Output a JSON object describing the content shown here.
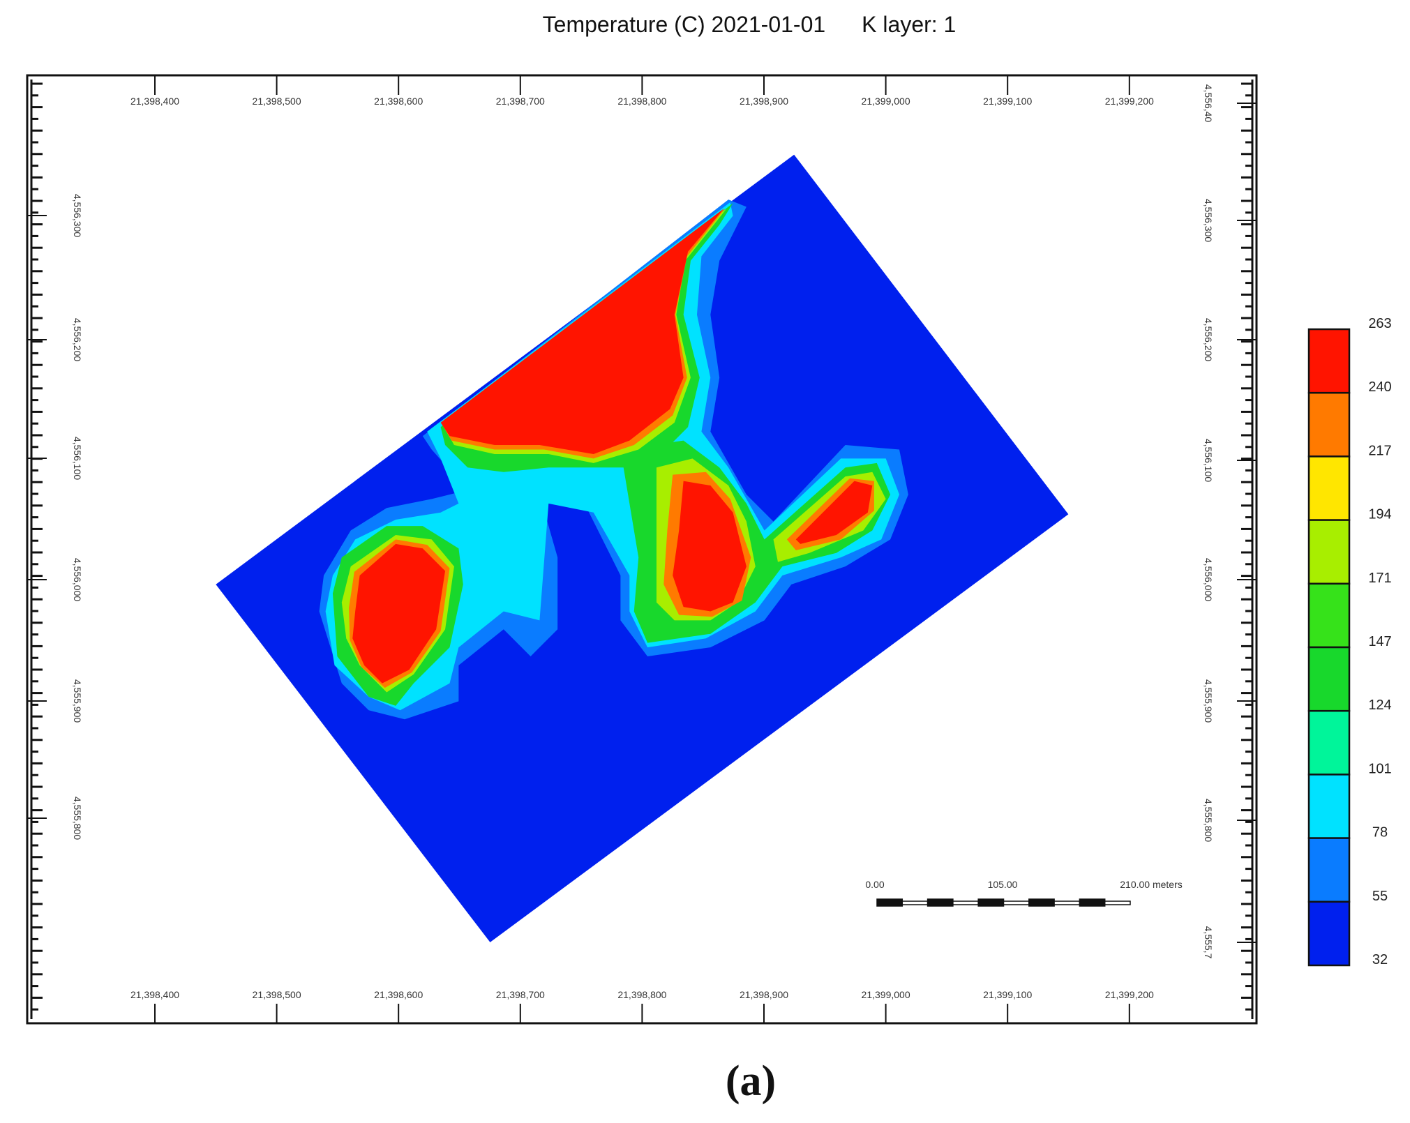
{
  "title": "Temperature (C) 2021-01-01",
  "layer_label": "K layer: 1",
  "x_ticks": [
    "21,398,400",
    "21,398,500",
    "21,398,600",
    "21,398,700",
    "21,398,800",
    "21,398,900",
    "21,399,000",
    "21,399,100",
    "21,399,200"
  ],
  "left_y_ticks": [
    "4,556,300",
    "4,556,200",
    "4,556,100",
    "4,556,000",
    "4,555,900",
    "4,555,800"
  ],
  "right_y_ticks": [
    "4,556,40",
    "4,556,300",
    "4,556,200",
    "4,556,100",
    "4,556,000",
    "4,555,900",
    "4,555,800",
    "4,555,7"
  ],
  "colorbar": {
    "levels": [
      263,
      240,
      217,
      194,
      171,
      147,
      124,
      101,
      78,
      55,
      32
    ],
    "colors": [
      "#ff1400",
      "#ff7a00",
      "#ffe600",
      "#a8ee00",
      "#36e21a",
      "#18d82c",
      "#00f59a",
      "#00e2ff",
      "#0a7cff",
      "#0020ee"
    ]
  },
  "scale_bar": [
    "0.00",
    "105.00",
    "210.00 meters"
  ],
  "caption": "(a)"
}
